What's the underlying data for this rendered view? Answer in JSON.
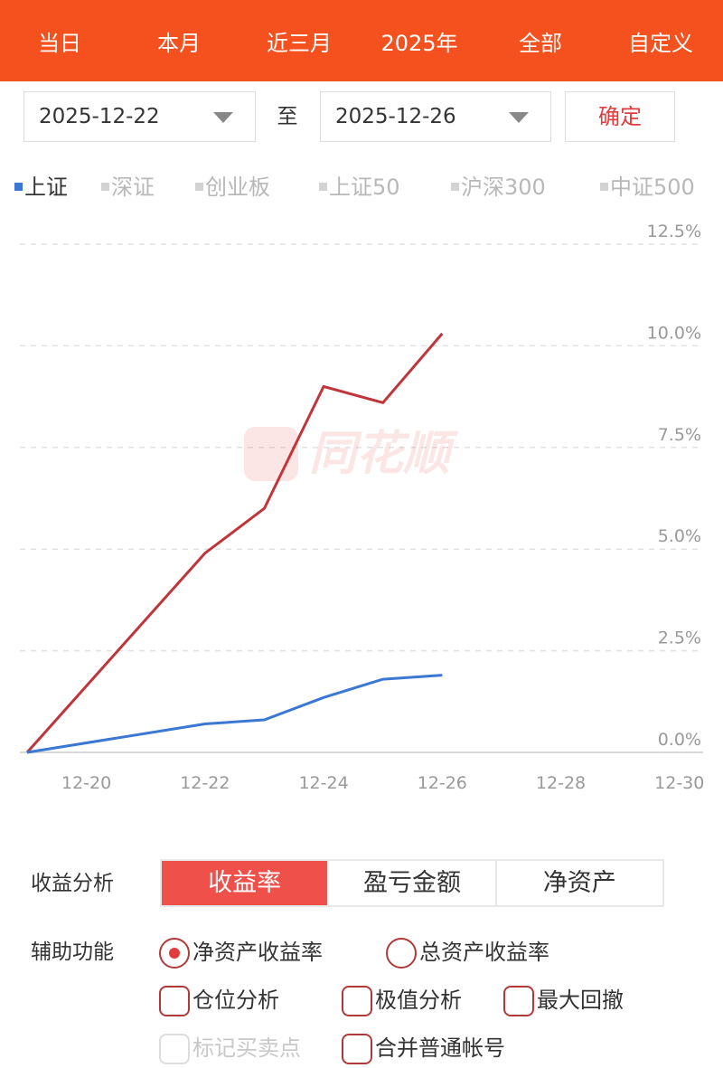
{
  "top_tabs": [
    {
      "label": "当日"
    },
    {
      "label": "本月"
    },
    {
      "label": "近三月"
    },
    {
      "label": "2025年"
    },
    {
      "label": "全部"
    },
    {
      "label": "自定义",
      "active": true
    }
  ],
  "date_range": {
    "start": "2025-12-22",
    "to_label": "至",
    "end": "2025-12-26",
    "confirm_label": "确定"
  },
  "indices": [
    {
      "label": "上证",
      "active": true
    },
    {
      "label": "深证"
    },
    {
      "label": "创业板"
    },
    {
      "label": "上证50"
    },
    {
      "label": "沪深300"
    },
    {
      "label": "中证500"
    }
  ],
  "watermark": {
    "text": "同花顺"
  },
  "chart_data": {
    "type": "line",
    "x_ticks": [
      "12-20",
      "12-22",
      "12-24",
      "12-26",
      "12-28",
      "12-30"
    ],
    "y_ticks": [
      "12.5%",
      "10.0%",
      "7.5%",
      "5.0%",
      "2.5%",
      "0.0%"
    ],
    "ylim": [
      0,
      12.5
    ],
    "x_range_days": [
      "12-19",
      "12-30"
    ],
    "grid": "horizontal dashed",
    "series": [
      {
        "color": "#c0353a",
        "points": [
          {
            "x": "12-19",
            "y": 0.0
          },
          {
            "x": "12-22",
            "y": 4.9
          },
          {
            "x": "12-23",
            "y": 6.0
          },
          {
            "x": "12-24",
            "y": 9.0
          },
          {
            "x": "12-25",
            "y": 8.6
          },
          {
            "x": "12-26",
            "y": 10.3
          }
        ]
      },
      {
        "color": "#3a78d4",
        "points": [
          {
            "x": "12-19",
            "y": 0.0
          },
          {
            "x": "12-22",
            "y": 0.7
          },
          {
            "x": "12-23",
            "y": 0.8
          },
          {
            "x": "12-24",
            "y": 1.35
          },
          {
            "x": "12-25",
            "y": 1.8
          },
          {
            "x": "12-26",
            "y": 1.9
          }
        ]
      }
    ]
  },
  "analysis": {
    "label": "收益分析",
    "options": [
      {
        "label": "收益率",
        "active": true
      },
      {
        "label": "盈亏金额"
      },
      {
        "label": "净资产"
      }
    ]
  },
  "aux": {
    "label": "辅助功能",
    "radios": [
      {
        "label": "净资产收益率",
        "checked": true
      },
      {
        "label": "总资产收益率",
        "checked": false
      }
    ],
    "checks": [
      {
        "label": "仓位分析"
      },
      {
        "label": "极值分析"
      },
      {
        "label": "最大回撤"
      },
      {
        "label": "标记买卖点",
        "disabled": true
      },
      {
        "label": "合并普通帐号"
      }
    ]
  }
}
